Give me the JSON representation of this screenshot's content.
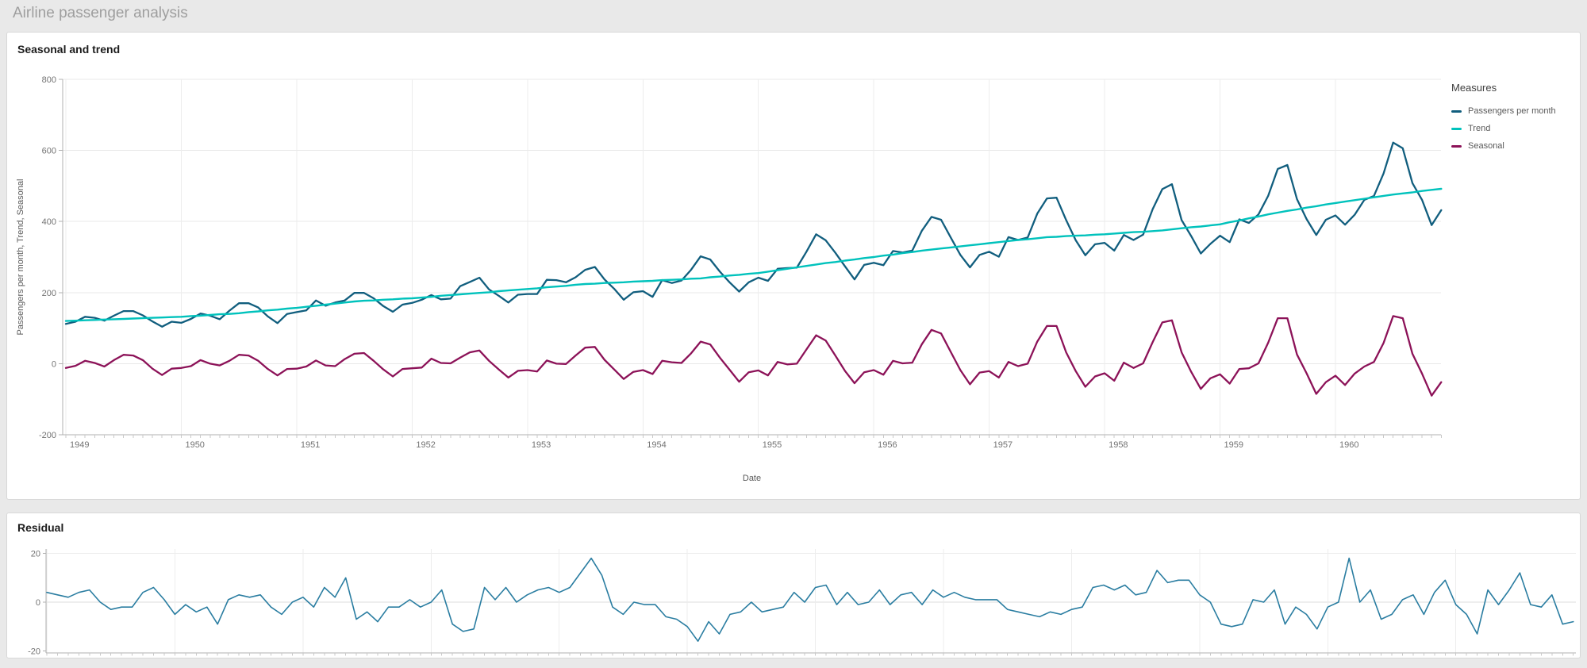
{
  "page": {
    "title": "Airline passenger analysis"
  },
  "legend": {
    "title": "Measures",
    "items": [
      "Passengers per month",
      "Trend",
      "Seasonal"
    ]
  },
  "colors": {
    "page_background": "#e9e9e9",
    "card_background": "#ffffff",
    "card_border": "#d8d8d8",
    "grid_line": "#e8e8e8",
    "axis_line": "#b0b0b0",
    "tick_label": "#737373",
    "axis_title": "#595959",
    "passengers": "#115e7e",
    "trend": "#00c2bc",
    "seasonal": "#8c1258",
    "residual": "#2a7da1"
  },
  "chart_data": [
    {
      "type": "line",
      "title": "Seasonal and trend",
      "xlabel": "Date",
      "ylabel": "Passengers per month, Trend, Seasonal",
      "legend_title": "Measures",
      "legend_position": "right",
      "grid": true,
      "x_unit": "month",
      "years": [
        1949,
        1950,
        1951,
        1952,
        1953,
        1954,
        1955,
        1956,
        1957,
        1958,
        1959,
        1960
      ],
      "ylim": [
        -200,
        800
      ],
      "yticks": [
        800,
        600,
        400,
        200,
        0,
        -200
      ],
      "series": [
        {
          "name": "Passengers per month",
          "color": "#115e7e",
          "values": [
            112,
            118,
            132,
            129,
            121,
            135,
            148,
            148,
            136,
            119,
            104,
            118,
            115,
            126,
            141,
            135,
            125,
            149,
            170,
            170,
            158,
            133,
            114,
            140,
            145,
            150,
            178,
            163,
            172,
            178,
            199,
            199,
            184,
            162,
            146,
            166,
            171,
            180,
            193,
            181,
            183,
            218,
            230,
            242,
            209,
            191,
            172,
            194,
            196,
            196,
            236,
            235,
            229,
            243,
            264,
            272,
            237,
            211,
            180,
            201,
            204,
            188,
            235,
            227,
            234,
            264,
            302,
            293,
            259,
            229,
            203,
            229,
            242,
            233,
            267,
            269,
            270,
            315,
            364,
            347,
            312,
            274,
            237,
            278,
            284,
            277,
            317,
            313,
            318,
            374,
            413,
            405,
            355,
            306,
            271,
            306,
            315,
            301,
            356,
            348,
            355,
            422,
            465,
            467,
            404,
            347,
            305,
            336,
            340,
            318,
            362,
            348,
            363,
            435,
            491,
            505,
            404,
            359,
            310,
            337,
            360,
            342,
            406,
            396,
            420,
            472,
            548,
            559,
            463,
            407,
            362,
            405,
            417,
            391,
            419,
            461,
            472,
            535,
            622,
            606,
            508,
            461,
            390,
            432
          ]
        },
        {
          "name": "Trend",
          "color": "#00c2bc",
          "values": [
            120,
            121,
            122,
            123,
            124,
            125,
            126,
            127,
            128,
            129,
            130,
            131,
            132,
            134,
            135,
            137,
            139,
            140,
            142,
            145,
            147,
            150,
            152,
            155,
            157,
            160,
            163,
            166,
            169,
            172,
            175,
            177,
            178,
            180,
            181,
            183,
            184,
            186,
            188,
            191,
            193,
            195,
            197,
            199,
            201,
            204,
            206,
            208,
            210,
            212,
            215,
            217,
            219,
            222,
            224,
            225,
            227,
            228,
            229,
            231,
            232,
            233,
            235,
            236,
            237,
            239,
            240,
            243,
            245,
            248,
            250,
            253,
            255,
            259,
            263,
            267,
            271,
            275,
            279,
            283,
            286,
            290,
            293,
            297,
            300,
            304,
            307,
            311,
            314,
            318,
            321,
            324,
            327,
            330,
            333,
            336,
            339,
            342,
            345,
            348,
            350,
            353,
            356,
            357,
            359,
            360,
            361,
            363,
            364,
            366,
            368,
            370,
            371,
            373,
            375,
            378,
            381,
            384,
            386,
            389,
            392,
            398,
            403,
            409,
            414,
            420,
            425,
            430,
            434,
            439,
            443,
            448,
            452,
            456,
            460,
            464,
            468,
            472,
            476,
            479,
            482,
            486,
            489,
            492
          ]
        },
        {
          "name": "Seasonal",
          "color": "#8c1258",
          "values": [
            -12,
            -6,
            8,
            2,
            -8,
            10,
            25,
            23,
            10,
            -14,
            -32,
            -14,
            -12,
            -7,
            10,
            0,
            -5,
            8,
            25,
            23,
            8,
            -15,
            -33,
            -15,
            -14,
            -8,
            9,
            -5,
            -7,
            13,
            28,
            30,
            8,
            -16,
            -36,
            -15,
            -13,
            -11,
            14,
            2,
            1,
            17,
            32,
            37,
            8,
            -16,
            -39,
            -20,
            -18,
            -22,
            9,
            0,
            -1,
            23,
            45,
            47,
            11,
            -16,
            -43,
            -23,
            -18,
            -29,
            8,
            4,
            2,
            29,
            62,
            54,
            17,
            -17,
            -51,
            -24,
            -19,
            -33,
            5,
            -2,
            0,
            40,
            80,
            65,
            23,
            -20,
            -55,
            -24,
            -18,
            -31,
            8,
            1,
            3,
            55,
            95,
            85,
            33,
            -18,
            -58,
            -25,
            -21,
            -39,
            5,
            -7,
            0,
            62,
            106,
            106,
            32,
            -21,
            -65,
            -36,
            -27,
            -48,
            3,
            -12,
            1,
            61,
            116,
            122,
            32,
            -23,
            -71,
            -41,
            -30,
            -56,
            -15,
            -13,
            1,
            59,
            128,
            128,
            26,
            -27,
            -85,
            -52,
            -34,
            -60,
            -28,
            -8,
            5,
            58,
            134,
            128,
            28,
            -28,
            -90,
            -52
          ]
        }
      ]
    },
    {
      "type": "line",
      "title": "Residual",
      "xlabel": "",
      "ylabel": "",
      "grid": true,
      "x_unit": "month",
      "years": [
        1949,
        1950,
        1951,
        1952,
        1953,
        1954,
        1955,
        1956,
        1957,
        1958,
        1959,
        1960
      ],
      "ylim": [
        -20,
        20
      ],
      "yticks": [
        20,
        0,
        -20
      ],
      "series": [
        {
          "name": "Residual",
          "color": "#2a7da1",
          "values": [
            4,
            3,
            2,
            4,
            5,
            0,
            -3,
            -2,
            -2,
            4,
            6,
            1,
            -5,
            -1,
            -4,
            -2,
            -9,
            1,
            3,
            2,
            3,
            -2,
            -5,
            0,
            2,
            -2,
            6,
            2,
            10,
            -7,
            -4,
            -8,
            -2,
            -2,
            1,
            -2,
            0,
            5,
            -9,
            -12,
            -11,
            6,
            1,
            6,
            0,
            3,
            5,
            6,
            4,
            6,
            12,
            18,
            11,
            -2,
            -5,
            0,
            -1,
            -1,
            -6,
            -7,
            -10,
            -16,
            -8,
            -13,
            -5,
            -4,
            0,
            -4,
            -3,
            -2,
            4,
            0,
            6,
            7,
            -1,
            4,
            -1,
            0,
            5,
            -1,
            3,
            4,
            -1,
            5,
            2,
            4,
            2,
            1,
            1,
            1,
            -3,
            -4,
            -5,
            -6,
            -4,
            -5,
            -3,
            -2,
            6,
            7,
            5,
            7,
            3,
            4,
            13,
            8,
            9,
            9,
            3,
            0,
            -9,
            -10,
            -9,
            1,
            0,
            5,
            -9,
            -2,
            -5,
            -11,
            -2,
            0,
            18,
            0,
            5,
            -7,
            -5,
            1,
            3,
            -5,
            4,
            9,
            -1,
            -5,
            -13,
            5,
            -1,
            5,
            12,
            -1,
            -2,
            3,
            -9,
            -8
          ]
        }
      ]
    }
  ]
}
